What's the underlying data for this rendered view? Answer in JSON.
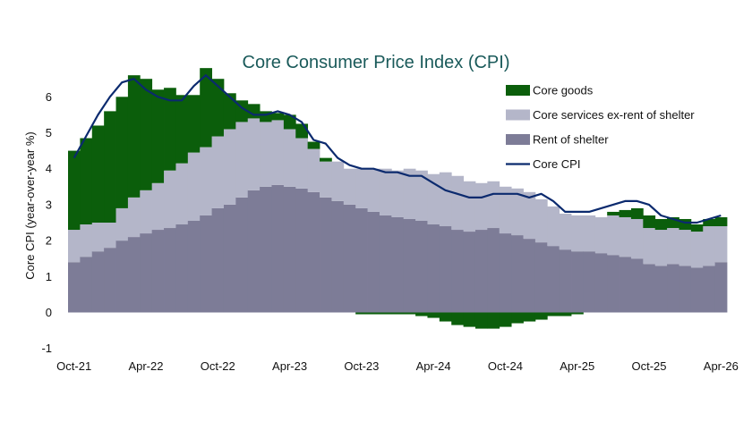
{
  "chart_data": {
    "type": "bar",
    "title": "Core Consumer Price Index (CPI)",
    "ylabel": "Core CPI (year-over-year %)",
    "ylim": [
      -1,
      6.7
    ],
    "yticks": [
      "-1",
      "0",
      "1",
      "2",
      "3",
      "4",
      "5",
      "6"
    ],
    "x_tick_labels": [
      "Oct-21",
      "Apr-22",
      "Oct-22",
      "Apr-23",
      "Oct-23",
      "Apr-24",
      "Oct-24",
      "Apr-25",
      "Oct-25",
      "Apr-26"
    ],
    "x_tick_index": [
      0,
      6,
      12,
      18,
      24,
      30,
      36,
      42,
      48,
      54
    ],
    "categories": [
      "Oct-21",
      "Nov-21",
      "Dec-21",
      "Jan-22",
      "Feb-22",
      "Mar-22",
      "Apr-22",
      "May-22",
      "Jun-22",
      "Jul-22",
      "Aug-22",
      "Sep-22",
      "Oct-22",
      "Nov-22",
      "Dec-22",
      "Jan-23",
      "Feb-23",
      "Mar-23",
      "Apr-23",
      "May-23",
      "Jun-23",
      "Jul-23",
      "Aug-23",
      "Sep-23",
      "Oct-23",
      "Nov-23",
      "Dec-23",
      "Jan-24",
      "Feb-24",
      "Mar-24",
      "Apr-24",
      "May-24",
      "Jun-24",
      "Jul-24",
      "Aug-24",
      "Sep-24",
      "Oct-24",
      "Nov-24",
      "Dec-24",
      "Jan-25",
      "Feb-25",
      "Mar-25",
      "Apr-25",
      "May-25",
      "Jun-25",
      "Jul-25",
      "Aug-25",
      "Sep-25",
      "Oct-25",
      "Nov-25",
      "Dec-25",
      "Jan-26",
      "Feb-26",
      "Mar-26",
      "Apr-26"
    ],
    "series": [
      {
        "name": "Core goods",
        "color": "#0b5e0b",
        "values": [
          2.2,
          2.4,
          2.7,
          3.1,
          3.1,
          3.4,
          3.1,
          2.6,
          2.3,
          1.9,
          1.6,
          2.2,
          1.6,
          1.0,
          0.6,
          0.4,
          0.3,
          0.2,
          0.4,
          0.4,
          0.2,
          0.1,
          0.0,
          0.0,
          -0.05,
          -0.05,
          -0.05,
          -0.05,
          -0.05,
          -0.1,
          -0.15,
          -0.25,
          -0.35,
          -0.4,
          -0.45,
          -0.45,
          -0.4,
          -0.3,
          -0.25,
          -0.2,
          -0.1,
          -0.1,
          -0.05,
          0.0,
          0.0,
          0.1,
          0.2,
          0.3,
          0.35,
          0.3,
          0.3,
          0.3,
          0.2,
          0.2,
          0.25
        ]
      },
      {
        "name": "Core services ex-rent of shelter",
        "color": "#b4b6c9",
        "values": [
          0.9,
          0.9,
          0.8,
          0.7,
          0.9,
          1.1,
          1.2,
          1.3,
          1.6,
          1.7,
          1.9,
          1.9,
          2.0,
          2.1,
          2.1,
          2.0,
          1.8,
          1.8,
          1.6,
          1.4,
          1.2,
          1.0,
          1.1,
          1.0,
          1.1,
          1.2,
          1.3,
          1.3,
          1.4,
          1.4,
          1.4,
          1.5,
          1.5,
          1.4,
          1.3,
          1.3,
          1.3,
          1.3,
          1.3,
          1.2,
          1.1,
          1.0,
          1.0,
          1.0,
          1.0,
          1.1,
          1.1,
          1.1,
          1.0,
          1.0,
          1.0,
          1.0,
          1.0,
          1.1,
          1.0
        ]
      },
      {
        "name": "Rent of shelter",
        "color": "#7d7c97",
        "values": [
          1.4,
          1.55,
          1.7,
          1.8,
          2.0,
          2.1,
          2.2,
          2.3,
          2.35,
          2.45,
          2.55,
          2.7,
          2.9,
          3.0,
          3.2,
          3.4,
          3.5,
          3.55,
          3.5,
          3.45,
          3.35,
          3.2,
          3.1,
          3.0,
          2.9,
          2.8,
          2.7,
          2.65,
          2.6,
          2.55,
          2.45,
          2.4,
          2.3,
          2.25,
          2.3,
          2.35,
          2.2,
          2.15,
          2.05,
          1.95,
          1.85,
          1.75,
          1.7,
          1.7,
          1.65,
          1.6,
          1.55,
          1.5,
          1.35,
          1.3,
          1.35,
          1.3,
          1.25,
          1.3,
          1.4
        ]
      },
      {
        "name": "Core CPI",
        "color": "#0b2a6e",
        "type": "line",
        "values": [
          4.3,
          4.9,
          5.5,
          6.0,
          6.4,
          6.5,
          6.2,
          6.0,
          5.9,
          5.9,
          6.3,
          6.6,
          6.3,
          6.0,
          5.7,
          5.5,
          5.5,
          5.6,
          5.5,
          5.3,
          4.8,
          4.7,
          4.3,
          4.1,
          4.0,
          4.0,
          3.9,
          3.9,
          3.8,
          3.8,
          3.6,
          3.4,
          3.3,
          3.2,
          3.2,
          3.3,
          3.3,
          3.3,
          3.2,
          3.3,
          3.1,
          2.8,
          2.8,
          2.8,
          2.9,
          3.0,
          3.1,
          3.1,
          3.0,
          2.7,
          2.6,
          2.5,
          2.5,
          2.6,
          2.7
        ]
      }
    ]
  }
}
